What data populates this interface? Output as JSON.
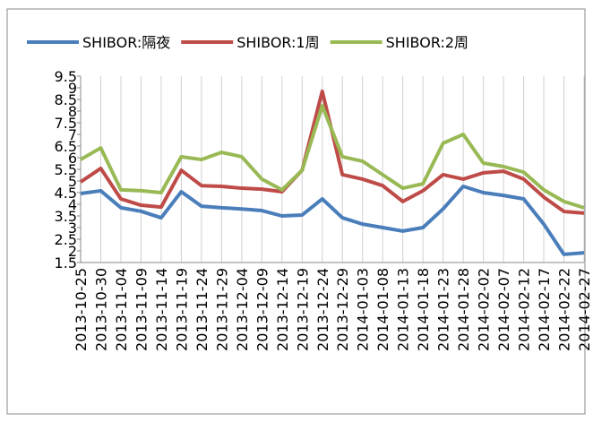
{
  "chart_data": {
    "type": "line",
    "categories": [
      "2013-10-25",
      "2013-10-30",
      "2013-11-04",
      "2013-11-09",
      "2013-11-14",
      "2013-11-19",
      "2013-11-24",
      "2013-11-29",
      "2013-12-04",
      "2013-12-09",
      "2013-12-14",
      "2013-12-19",
      "2013-12-24",
      "2013-12-29",
      "2014-01-03",
      "2014-01-08",
      "2014-01-13",
      "2014-01-18",
      "2014-01-23",
      "2014-01-28",
      "2014-02-02",
      "2014-02-07",
      "2014-02-12",
      "2014-02-17",
      "2014-02-22",
      "2014-02-27"
    ],
    "series": [
      {
        "name": "SHIBOR:隔夜",
        "color": "#4a7ebb",
        "values": [
          4.46,
          4.58,
          3.85,
          3.7,
          3.42,
          4.54,
          3.92,
          3.85,
          3.8,
          3.73,
          3.5,
          3.54,
          4.23,
          3.42,
          3.15,
          3.0,
          2.85,
          3.0,
          3.8,
          4.77,
          4.5,
          4.38,
          4.23,
          3.15,
          1.85,
          1.92
        ]
      },
      {
        "name": "SHIBOR:1周",
        "color": "#be4b48",
        "values": [
          4.96,
          5.54,
          4.23,
          3.96,
          3.88,
          5.46,
          4.8,
          4.77,
          4.69,
          4.65,
          4.54,
          5.46,
          8.85,
          5.27,
          5.08,
          4.8,
          4.12,
          4.58,
          5.27,
          5.08,
          5.35,
          5.42,
          5.08,
          4.31,
          3.69,
          3.62
        ]
      },
      {
        "name": "SHIBOR:2周",
        "color": "#98b954",
        "values": [
          5.92,
          6.42,
          4.62,
          4.58,
          4.5,
          6.04,
          5.92,
          6.23,
          6.04,
          5.08,
          4.62,
          5.46,
          8.23,
          6.04,
          5.85,
          5.27,
          4.69,
          4.88,
          6.62,
          7.0,
          5.77,
          5.62,
          5.38,
          4.62,
          4.12,
          3.85
        ]
      }
    ],
    "ylim": [
      1.5,
      9.5
    ],
    "yticks": [
      1.5,
      2,
      2.5,
      3,
      3.5,
      4,
      4.5,
      5,
      5.5,
      6,
      6.5,
      7,
      7.5,
      8,
      8.5,
      9,
      9.5
    ],
    "grid": true,
    "legend": "top"
  }
}
